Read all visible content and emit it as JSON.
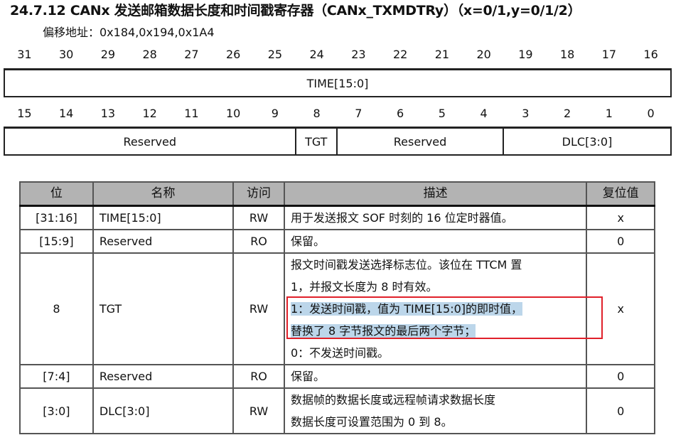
{
  "title": "24.7.12 CANx 发送邮箱数据长度和时间戳寄存器（CANx_TXMDTRy）（x=0/1,y=0/1/2）",
  "offset": "偏移地址：0x184,0x194,0x1A4",
  "bits_high": [
    "31",
    "30",
    "29",
    "28",
    "27",
    "26",
    "25",
    "24",
    "23",
    "22",
    "21",
    "20",
    "19",
    "18",
    "17",
    "16"
  ],
  "bits_low": [
    "15",
    "14",
    "13",
    "12",
    "11",
    "10",
    "9",
    "8",
    "7",
    "6",
    "5",
    "4",
    "3",
    "2",
    "1",
    "0"
  ],
  "reg_high": [
    {
      "name": "TIME[15:0]",
      "span": 16
    }
  ],
  "reg_low": [
    {
      "name": "Reserved",
      "span": 7
    },
    {
      "name": "TGT",
      "span": 1
    },
    {
      "name": "Reserved",
      "span": 4
    },
    {
      "name": "DLC[3:0]",
      "span": 4
    }
  ],
  "table": {
    "headers": [
      "位",
      "名称",
      "访问",
      "描述",
      "复位值"
    ],
    "rows": [
      {
        "bits": "[31:16]",
        "name": "TIME[15:0]",
        "access": "RW",
        "desc": [
          "用于发送报文 SOF 时刻的 16 位定时器值。"
        ],
        "reset": "x"
      },
      {
        "bits": "[15:9]",
        "name": "Reserved",
        "access": "RO",
        "desc": [
          "保留。"
        ],
        "reset": "0"
      },
      {
        "bits": "8",
        "name": "TGT",
        "access": "RW",
        "desc": [
          "报文时间戳发送选择标志位。该位在 TTCM 置",
          "1，并报文长度为 8 时有效。",
          "1：发送时间戳，值为 TIME[15:0]的即时值，",
          "替换了 8 字节报文的最后两个字节；",
          "0：不发送时间戳。"
        ],
        "reset": "x"
      },
      {
        "bits": "[7:4]",
        "name": "Reserved",
        "access": "RO",
        "desc": [
          "保留。"
        ],
        "reset": "0"
      },
      {
        "bits": "[3:0]",
        "name": "DLC[3:0]",
        "access": "RW",
        "desc": [
          "数据帧的数据长度或远程帧请求数据长度",
          "数据长度可设置范围为 0 到 8。"
        ],
        "reset": "0"
      }
    ]
  },
  "colors": {
    "header_bg": "#b3b3b3",
    "highlight": "#bcd6ea",
    "annotation_box": "#e0202a"
  }
}
